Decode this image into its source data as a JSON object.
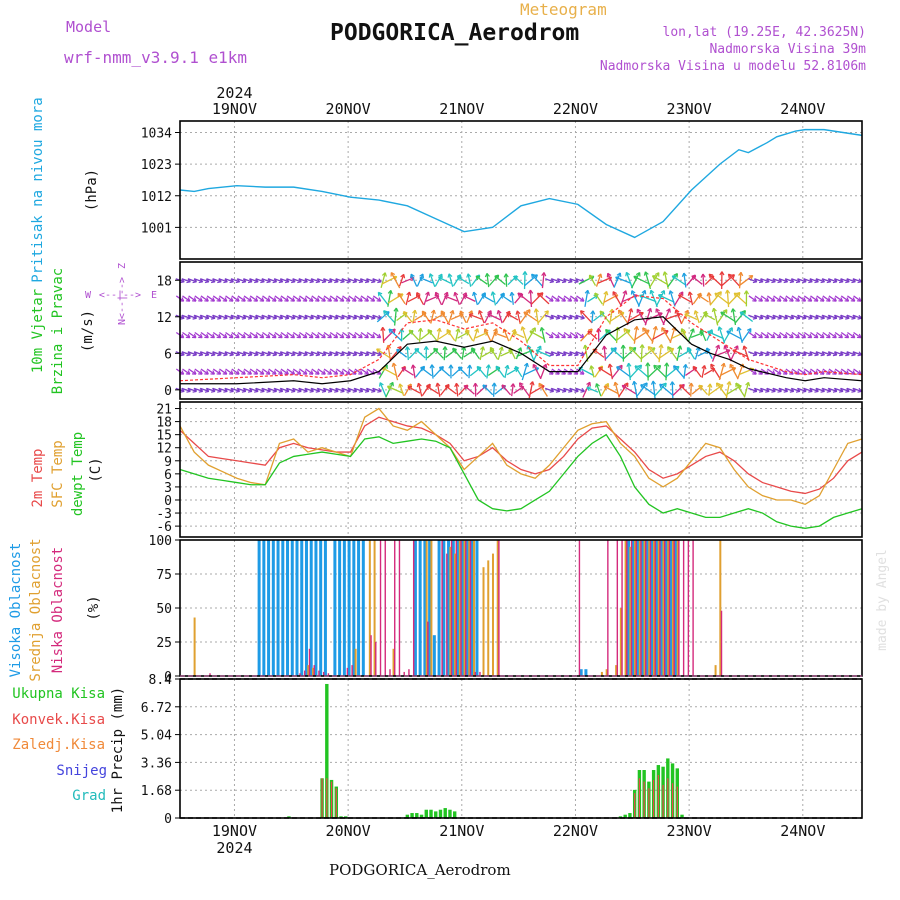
{
  "header": {
    "model_label": "Model",
    "model_name": "wrf-nmm_v3.9.1 e1km",
    "meteogram_label": "Meteogram",
    "station_title": "PODGORICA_Aerodrom",
    "lonlat": "lon,lat (19.25E, 42.3625N)",
    "altitude": "Nadmorska Visina 39m",
    "model_altitude": "Nadmorska Visina u modelu 52.8106m"
  },
  "footer": {
    "station": "PODGORICA_Aerodrom",
    "credit": "made by Angel"
  },
  "colors": {
    "pressure": "#1fa8e0",
    "wind_speed": "#000000",
    "gust": "#ff3333",
    "temp_2m": "#e84a4a",
    "temp_sfc": "#e0a030",
    "dewpoint": "#22c422",
    "cloud_high": "#1e9be6",
    "cloud_mid": "#e0a030",
    "cloud_low": "#d42a7c",
    "precip_total": "#22c422",
    "precip_conv": "#e84a4a",
    "precip_frz": "#f08a3a",
    "precip_snow": "#4444dd",
    "precip_hail": "#22bbbb",
    "panel_label_blue": "#1fa8e0",
    "wind_label_green": "#22c422",
    "wind_rose": "#b050d0",
    "title_purple": "#b050d0",
    "meteogram_orange": "#e8b04a"
  },
  "time_axis": {
    "year": "2024",
    "days": [
      "19NOV",
      "20NOV",
      "21NOV",
      "22NOV",
      "23NOV",
      "24NOV"
    ],
    "start_hour": 0,
    "end_hour": 144
  },
  "chart_data": [
    {
      "type": "line",
      "panel": "pressure",
      "ylabel_main": "Pritisak na nivou mora",
      "ylabel_unit": "(hPa)",
      "yticks": [
        "1001",
        "1012",
        "1023",
        "1034"
      ],
      "ylim": [
        990,
        1038
      ],
      "x_hours": [
        0,
        3,
        6,
        12,
        18,
        24,
        30,
        36,
        42,
        48,
        54,
        60,
        66,
        72,
        78,
        84,
        90,
        96,
        102,
        108,
        114,
        118,
        120,
        124,
        126,
        130,
        132,
        136,
        144
      ],
      "values": [
        1014,
        1013.5,
        1014.5,
        1015.5,
        1015,
        1015,
        1013.5,
        1011.5,
        1010.5,
        1008.5,
        1004,
        999.5,
        1001,
        1008.5,
        1011,
        1009,
        1002,
        997.5,
        1003,
        1014,
        1023,
        1028,
        1027,
        1030.5,
        1032.5,
        1034.5,
        1035,
        1035,
        1033
      ]
    },
    {
      "type": "line",
      "panel": "wind",
      "ylabel_main": "10m Vjetar",
      "ylabel_main2": "Brzina i Pravac",
      "ylabel_unit": "(m/s)",
      "rose": {
        "north": "Z",
        "west": "W",
        "east": "E",
        "south": "N",
        "arrow_h": "<--|-->",
        "arrow_v": "<--|-->"
      },
      "yticks": [
        "0",
        "6",
        "12",
        "18"
      ],
      "ylim": [
        -1.5,
        21
      ],
      "x_hours": [
        0,
        12,
        24,
        30,
        36,
        42,
        48,
        54,
        60,
        66,
        72,
        78,
        84,
        90,
        96,
        102,
        108,
        112,
        116,
        120,
        128,
        132,
        136,
        144
      ],
      "series": [
        {
          "values": [
            1,
            1,
            1.5,
            1,
            1.5,
            3,
            7.5,
            8,
            7,
            8,
            6,
            3,
            3,
            9,
            11.5,
            12,
            7.5,
            6,
            5,
            3.5,
            2,
            1.5,
            2,
            1.5
          ]
        },
        {
          "values": [
            1.5,
            2,
            2.5,
            2,
            2.5,
            5,
            11,
            11.5,
            10,
            11,
            8,
            4,
            4,
            12,
            15.5,
            15,
            11,
            9,
            7,
            5,
            3,
            2.5,
            3,
            2.5
          ]
        }
      ]
    },
    {
      "type": "line",
      "panel": "temperature",
      "ylabel_main": "2m Temp",
      "ylabel_main2": "SFC Temp",
      "ylabel_main3": "dewpt Temp",
      "ylabel_unit": "(C)",
      "yticks": [
        "-6",
        "-3",
        "0",
        "3",
        "6",
        "9",
        "12",
        "15",
        "18",
        "21"
      ],
      "ylim": [
        -8.5,
        22.5
      ],
      "x_hours": [
        0,
        3,
        6,
        9,
        12,
        15,
        18,
        21,
        24,
        27,
        30,
        33,
        36,
        39,
        42,
        45,
        48,
        51,
        54,
        57,
        60,
        63,
        66,
        69,
        72,
        75,
        78,
        81,
        84,
        87,
        90,
        93,
        96,
        99,
        102,
        105,
        108,
        111,
        114,
        117,
        120,
        123,
        126,
        129,
        132,
        135,
        138,
        141,
        144
      ],
      "series": [
        {
          "name": "2m Temp",
          "values": [
            16,
            13,
            10,
            9.5,
            9,
            8.5,
            8,
            12,
            13,
            12,
            11.5,
            11,
            11,
            17,
            19,
            18,
            17,
            16.5,
            15,
            13,
            9,
            10,
            12,
            9,
            7,
            6,
            7,
            10,
            14,
            16.5,
            17,
            14,
            11,
            7,
            5,
            6,
            8,
            10,
            11,
            9,
            6,
            4,
            3,
            2,
            1.5,
            2.5,
            5,
            9,
            11
          ]
        },
        {
          "name": "SFC Temp",
          "values": [
            17,
            11,
            8,
            6.5,
            5,
            4,
            3.5,
            13,
            14,
            11,
            12,
            11,
            10,
            19,
            21,
            17,
            16,
            18,
            15,
            12,
            7,
            10,
            13,
            8,
            6,
            5,
            8,
            12,
            16,
            17.5,
            18,
            13,
            10,
            5,
            3,
            5,
            9,
            13,
            12,
            7,
            3,
            1,
            0,
            0,
            -1,
            1,
            7,
            13,
            14
          ]
        },
        {
          "name": "dewpt Temp",
          "values": [
            7,
            6,
            5,
            4.5,
            4,
            3.5,
            3.5,
            8.5,
            10,
            10.5,
            11,
            10.5,
            10,
            14,
            14.5,
            13,
            13.5,
            14,
            13.5,
            12,
            6,
            0,
            -2,
            -2.5,
            -2,
            0,
            2,
            6,
            10,
            13,
            15,
            10,
            3,
            -1,
            -3,
            -2,
            -3,
            -4,
            -4,
            -3,
            -2,
            -3,
            -5,
            -6,
            -6.5,
            -6,
            -4,
            -3,
            -2
          ]
        }
      ]
    },
    {
      "type": "bar",
      "panel": "clouds",
      "ylabel_main": "Visoka Oblacnost",
      "ylabel_main2": "Srednja Oblacnost",
      "ylabel_main3": "Niska Oblacnost",
      "ylabel_unit": "(%)",
      "yticks": [
        "0",
        "25",
        "50",
        "75",
        "100"
      ],
      "ylim": [
        0,
        100
      ],
      "series": [
        {
          "name": "Visoka Oblacnost",
          "x_hours": [
            17,
            18,
            19,
            20,
            21,
            22,
            23,
            24,
            25,
            26,
            27,
            28,
            29,
            30,
            31,
            33,
            34,
            35,
            36,
            37,
            38,
            39,
            50,
            51,
            52,
            53,
            54,
            55,
            56,
            57,
            58,
            59,
            60,
            61,
            62,
            63,
            85,
            86,
            95,
            96,
            97,
            98,
            99,
            100,
            101,
            102,
            103,
            104,
            105
          ],
          "values": [
            100,
            100,
            100,
            100,
            100,
            100,
            100,
            100,
            100,
            100,
            100,
            100,
            100,
            100,
            100,
            100,
            100,
            100,
            100,
            100,
            100,
            100,
            100,
            100,
            100,
            100,
            30,
            100,
            100,
            100,
            100,
            100,
            100,
            100,
            100,
            100,
            5,
            5,
            100,
            100,
            100,
            100,
            100,
            100,
            100,
            100,
            100,
            100,
            100
          ]
        },
        {
          "name": "Srednja Oblacnost",
          "x_hours": [
            3,
            27,
            28,
            37,
            40,
            41,
            45,
            52,
            53,
            57,
            58,
            59,
            60,
            61,
            62,
            64,
            65,
            66,
            67,
            89,
            90,
            92,
            93,
            94,
            95,
            96,
            97,
            98,
            99,
            100,
            101,
            102,
            103,
            104,
            105,
            113,
            114
          ],
          "values": [
            43,
            8,
            6,
            20,
            100,
            100,
            20,
            100,
            100,
            95,
            90,
            100,
            100,
            100,
            100,
            80,
            85,
            90,
            100,
            3,
            5,
            8,
            50,
            100,
            95,
            100,
            100,
            100,
            100,
            100,
            100,
            100,
            100,
            100,
            100,
            8,
            100
          ]
        },
        {
          "name": "Niska Oblacnost",
          "x_hours": [
            6,
            25,
            26,
            27,
            28,
            29,
            30,
            31,
            35,
            36,
            40,
            41,
            42,
            43,
            44,
            45,
            46,
            47,
            48,
            49,
            52,
            55,
            56,
            57,
            58,
            59,
            60,
            61,
            62,
            63,
            67,
            84,
            90,
            92,
            93,
            94,
            95,
            96,
            97,
            98,
            99,
            100,
            101,
            102,
            103,
            104,
            105,
            106,
            107,
            108,
            114
          ],
          "values": [
            2,
            2,
            4,
            20,
            8,
            4,
            3,
            2,
            6,
            8,
            30,
            25,
            100,
            100,
            5,
            100,
            100,
            3,
            5,
            100,
            40,
            100,
            90,
            100,
            100,
            100,
            100,
            100,
            3,
            3,
            100,
            100,
            100,
            100,
            100,
            100,
            100,
            100,
            100,
            100,
            100,
            100,
            100,
            100,
            100,
            100,
            100,
            100,
            100,
            100,
            48
          ]
        }
      ]
    },
    {
      "type": "bar",
      "panel": "precip",
      "ylabel_main": "1hr Precip (mm)",
      "legend": [
        "Ukupna Kisa",
        "Konvek.Kisa",
        "Zaledj.Kisa",
        "Snijeg",
        "Grad"
      ],
      "yticks": [
        "0",
        "1.68",
        "3.36",
        "5.04",
        "6.72",
        "8.4"
      ],
      "ylim": [
        0,
        8.4
      ],
      "series": [
        {
          "name": "Ukupna Kisa",
          "x_hours": [
            23,
            30,
            31,
            32,
            33,
            34,
            35,
            48,
            49,
            50,
            51,
            52,
            53,
            54,
            55,
            56,
            57,
            58,
            93,
            94,
            95,
            96,
            97,
            98,
            99,
            100,
            101,
            102,
            103,
            104,
            105,
            106
          ],
          "values": [
            0.1,
            2.4,
            8.1,
            2.3,
            1.9,
            0.1,
            0.1,
            0.2,
            0.3,
            0.3,
            0.2,
            0.5,
            0.5,
            0.4,
            0.5,
            0.6,
            0.5,
            0.4,
            0.1,
            0.2,
            0.3,
            1.7,
            2.9,
            2.9,
            2.2,
            2.9,
            3.2,
            3.1,
            3.6,
            3.3,
            3.0,
            0.2
          ]
        },
        {
          "name": "Konvek.Kisa",
          "x_hours": [
            30,
            31,
            32,
            33,
            96,
            97,
            98,
            99,
            100,
            101,
            102,
            103,
            104,
            105
          ],
          "values": [
            2.4,
            2.4,
            2.2,
            1.8,
            1.5,
            2.4,
            2.2,
            1.8,
            2.3,
            2.6,
            2.0,
            2.4,
            2.1,
            1.9
          ]
        }
      ]
    }
  ]
}
